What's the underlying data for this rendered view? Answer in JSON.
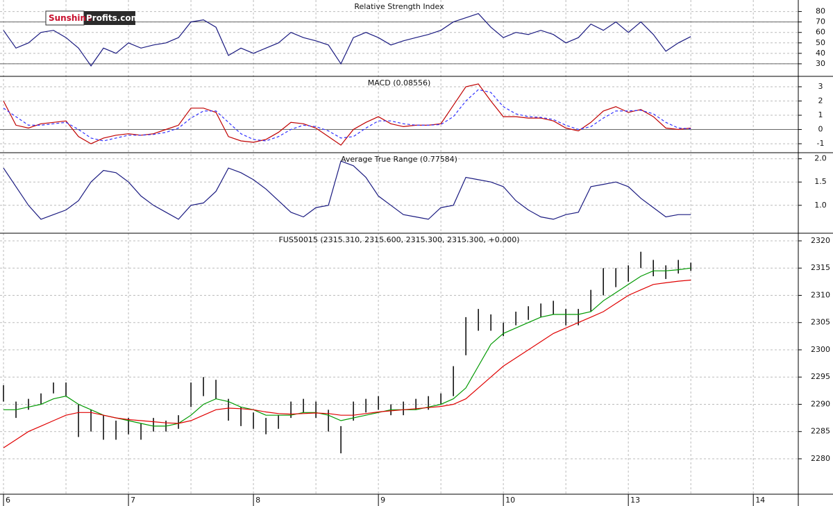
{
  "logo": [
    "Sunshine",
    "Profits.com"
  ],
  "chart_data": [
    {
      "type": "line",
      "title": "Relative Strength Index",
      "x": [
        0,
        0.1,
        0.2,
        0.3,
        0.4,
        0.5,
        0.6,
        0.7,
        0.8,
        0.9,
        1,
        1.1,
        1.2,
        1.3,
        1.4,
        1.5,
        1.6,
        1.7,
        1.8,
        1.9,
        2,
        2.1,
        2.2,
        2.3,
        2.4,
        2.5,
        2.6,
        2.7,
        2.8,
        2.9,
        3,
        3.1,
        3.2,
        3.3,
        3.4,
        3.5,
        3.6,
        3.7,
        3.8,
        3.9,
        4,
        4.1,
        4.2,
        4.3,
        4.4,
        4.5,
        4.6,
        4.7,
        4.8,
        4.9,
        5,
        5.1,
        5.2,
        5.3,
        5.4,
        5.5
      ],
      "series": [
        {
          "color": "#1a1a80",
          "values": [
            62,
            45,
            50,
            60,
            62,
            55,
            45,
            28,
            45,
            40,
            50,
            45,
            48,
            50,
            55,
            70,
            72,
            65,
            38,
            45,
            40,
            45,
            50,
            60,
            55,
            52,
            48,
            30,
            55,
            60,
            55,
            48,
            52,
            55,
            58,
            62,
            70,
            74,
            78,
            65,
            55,
            60,
            58,
            62,
            58,
            50,
            55,
            68,
            62,
            70,
            60,
            70,
            58,
            42,
            50,
            56
          ]
        }
      ],
      "levels": [
        30,
        70
      ],
      "ylim": [
        18,
        91
      ],
      "yticks": [
        30,
        40,
        50,
        60,
        70,
        80
      ],
      "grid": true
    },
    {
      "type": "line",
      "title": "MACD (0.08556)",
      "x": [
        0,
        0.1,
        0.2,
        0.3,
        0.4,
        0.5,
        0.6,
        0.7,
        0.8,
        0.9,
        1,
        1.1,
        1.2,
        1.3,
        1.4,
        1.5,
        1.6,
        1.7,
        1.8,
        1.9,
        2,
        2.1,
        2.2,
        2.3,
        2.4,
        2.5,
        2.6,
        2.7,
        2.8,
        2.9,
        3,
        3.1,
        3.2,
        3.3,
        3.4,
        3.5,
        3.6,
        3.7,
        3.8,
        3.9,
        4,
        4.1,
        4.2,
        4.3,
        4.4,
        4.5,
        4.6,
        4.7,
        4.8,
        4.9,
        5,
        5.1,
        5.2,
        5.3,
        5.4,
        5.5
      ],
      "series": [
        {
          "color": "#c00000",
          "values": [
            2.0,
            0.3,
            0.1,
            0.4,
            0.5,
            0.6,
            -0.5,
            -1.0,
            -0.6,
            -0.4,
            -0.3,
            -0.4,
            -0.3,
            0.0,
            0.3,
            1.5,
            1.5,
            1.2,
            -0.5,
            -0.8,
            -0.9,
            -0.7,
            -0.2,
            0.5,
            0.4,
            0.1,
            -0.5,
            -1.1,
            0.0,
            0.5,
            0.9,
            0.4,
            0.2,
            0.3,
            0.3,
            0.4,
            1.7,
            3.0,
            3.2,
            2.0,
            0.9,
            0.9,
            0.8,
            0.8,
            0.6,
            0.1,
            -0.1,
            0.5,
            1.3,
            1.6,
            1.2,
            1.4,
            0.9,
            0.1,
            0.0,
            0.1
          ]
        },
        {
          "color": "#3030ff",
          "dashed": true,
          "values": [
            1.5,
            0.9,
            0.3,
            0.3,
            0.4,
            0.5,
            0.0,
            -0.6,
            -0.8,
            -0.6,
            -0.4,
            -0.4,
            -0.35,
            -0.2,
            0.1,
            0.8,
            1.3,
            1.3,
            0.5,
            -0.3,
            -0.7,
            -0.8,
            -0.5,
            0.0,
            0.3,
            0.2,
            -0.1,
            -0.6,
            -0.5,
            0.1,
            0.6,
            0.6,
            0.4,
            0.3,
            0.3,
            0.35,
            0.9,
            2.0,
            2.8,
            2.6,
            1.6,
            1.1,
            0.9,
            0.85,
            0.7,
            0.3,
            0.0,
            0.2,
            0.8,
            1.3,
            1.3,
            1.35,
            1.1,
            0.5,
            0.1,
            0.05
          ]
        }
      ],
      "levels": [
        0
      ],
      "ylim": [
        -1.63,
        3.73
      ],
      "yticks": [
        -1,
        0,
        1,
        2,
        3
      ],
      "grid": true
    },
    {
      "type": "line",
      "title": "Average True Range (0.77584)",
      "x": [
        0,
        0.1,
        0.2,
        0.3,
        0.4,
        0.5,
        0.6,
        0.7,
        0.8,
        0.9,
        1,
        1.1,
        1.2,
        1.3,
        1.4,
        1.5,
        1.6,
        1.7,
        1.8,
        1.9,
        2,
        2.1,
        2.2,
        2.3,
        2.4,
        2.5,
        2.6,
        2.7,
        2.8,
        2.9,
        3,
        3.1,
        3.2,
        3.3,
        3.4,
        3.5,
        3.6,
        3.7,
        3.8,
        3.9,
        4,
        4.1,
        4.2,
        4.3,
        4.4,
        4.5,
        4.6,
        4.7,
        4.8,
        4.9,
        5,
        5.1,
        5.2,
        5.3,
        5.4,
        5.5
      ],
      "series": [
        {
          "color": "#1a1a80",
          "values": [
            1.8,
            1.4,
            1.0,
            0.7,
            0.8,
            0.9,
            1.1,
            1.5,
            1.75,
            1.7,
            1.5,
            1.2,
            1.0,
            0.85,
            0.7,
            1.0,
            1.05,
            1.3,
            1.8,
            1.7,
            1.55,
            1.35,
            1.1,
            0.85,
            0.75,
            0.95,
            1.0,
            1.95,
            1.85,
            1.6,
            1.2,
            1.0,
            0.8,
            0.75,
            0.7,
            0.95,
            1.0,
            1.6,
            1.55,
            1.5,
            1.4,
            1.1,
            0.9,
            0.75,
            0.7,
            0.8,
            0.85,
            1.4,
            1.45,
            1.5,
            1.4,
            1.15,
            0.95,
            0.75,
            0.8,
            0.8
          ]
        }
      ],
      "ylim": [
        0.4,
        2.13
      ],
      "yticks": [
        {
          "value": 1,
          "label": "1.0"
        },
        {
          "value": 1.5,
          "label": "1.5"
        },
        {
          "value": 2,
          "label": "2.0"
        }
      ],
      "grid": true
    },
    {
      "type": "ohlc",
      "title": "FUS50015 (2315.310, 2315.600, 2315.300, 2315.300, +0.000)",
      "x": [
        0,
        0.1,
        0.2,
        0.3,
        0.4,
        0.5,
        0.6,
        0.7,
        0.8,
        0.9,
        1,
        1.1,
        1.2,
        1.3,
        1.4,
        1.5,
        1.6,
        1.7,
        1.8,
        1.9,
        2,
        2.1,
        2.2,
        2.3,
        2.4,
        2.5,
        2.6,
        2.7,
        2.8,
        2.9,
        3,
        3.1,
        3.2,
        3.3,
        3.4,
        3.5,
        3.6,
        3.7,
        3.8,
        3.9,
        4,
        4.1,
        4.2,
        4.3,
        4.4,
        4.5,
        4.6,
        4.7,
        4.8,
        4.9,
        5,
        5.1,
        5.2,
        5.3,
        5.4,
        5.5
      ],
      "high": [
        2293.5,
        2290.5,
        2291,
        2292,
        2294,
        2294,
        2290,
        2289,
        2288,
        2287,
        2287.5,
        2286.5,
        2287.5,
        2287,
        2288,
        2294,
        2295,
        2294.5,
        2291,
        2289.5,
        2288.5,
        2287.5,
        2288,
        2290.5,
        2291,
        2290.5,
        2289,
        2286,
        2290.5,
        2291,
        2291.5,
        2290,
        2290.5,
        2291,
        2291.5,
        2292,
        2297,
        2306,
        2307.5,
        2306.5,
        2305,
        2307,
        2308,
        2308.5,
        2309,
        2307.5,
        2307.5,
        2311,
        2315,
        2315,
        2315.5,
        2318,
        2316.5,
        2315.5,
        2316.5,
        2316
      ],
      "low": [
        2290.5,
        2287.5,
        2289,
        2290,
        2292,
        2291.5,
        2284,
        2285,
        2283.5,
        2283.5,
        2284.5,
        2283.5,
        2285,
        2285,
        2285.5,
        2289.5,
        2291.5,
        2291,
        2287,
        2286,
        2285.5,
        2284.5,
        2285.5,
        2287.5,
        2288.5,
        2287.5,
        2285,
        2281,
        2287,
        2288.5,
        2289,
        2288,
        2288,
        2289,
        2289,
        2290,
        2291.5,
        2299,
        2303.5,
        2303.5,
        2302.5,
        2304.5,
        2305.5,
        2306,
        2306.5,
        2304.5,
        2304.5,
        2307,
        2310,
        2311.5,
        2312.5,
        2315,
        2313.5,
        2313,
        2314,
        2314.5
      ],
      "series": [
        {
          "color": "#009900",
          "values": [
            2289,
            2289,
            2289.5,
            2290,
            2291,
            2291.5,
            2290,
            2289,
            2288,
            2287.5,
            2287,
            2286.5,
            2286,
            2286,
            2286.5,
            2288,
            2290,
            2291,
            2290.5,
            2289.5,
            2289,
            2288,
            2288,
            2288,
            2288.5,
            2288.5,
            2288,
            2287,
            2287.5,
            2288,
            2288.5,
            2289,
            2289,
            2289,
            2289.5,
            2290,
            2291,
            2293,
            2297,
            2301,
            2303,
            2304,
            2305,
            2306,
            2306.5,
            2306.5,
            2306.5,
            2307,
            2309,
            2310.5,
            2312,
            2313.5,
            2314.5,
            2314.5,
            2314.7,
            2315
          ]
        },
        {
          "color": "#e00000",
          "values": [
            2282,
            2283.5,
            2285,
            2286,
            2287,
            2288,
            2288.5,
            2288.5,
            2288,
            2287.5,
            2287.2,
            2287,
            2286.8,
            2286.6,
            2286.5,
            2287,
            2288,
            2289,
            2289.3,
            2289.2,
            2289,
            2288.6,
            2288.3,
            2288.2,
            2288.3,
            2288.4,
            2288.3,
            2288,
            2288,
            2288.3,
            2288.6,
            2288.8,
            2289,
            2289.2,
            2289.4,
            2289.6,
            2290,
            2291,
            2293,
            2295,
            2297,
            2298.5,
            2300,
            2301.5,
            2303,
            2304,
            2305,
            2306,
            2307,
            2308.5,
            2310,
            2311,
            2312,
            2312.3,
            2312.6,
            2312.8
          ]
        }
      ],
      "xlim": [
        -0.028,
        6.36
      ],
      "xticks": [
        {
          "value": 0,
          "label": "6"
        },
        {
          "value": 1,
          "label": "7"
        },
        {
          "value": 2,
          "label": "8"
        },
        {
          "value": 3,
          "label": "9"
        },
        {
          "value": 4,
          "label": "10"
        },
        {
          "value": 5,
          "label": "13"
        },
        {
          "value": 6,
          "label": "14"
        }
      ],
      "ylim": [
        2273.5,
        2321.4
      ],
      "yticks": [
        2280,
        2285,
        2290,
        2295,
        2300,
        2305,
        2310,
        2315,
        2320
      ],
      "grid": true
    }
  ]
}
